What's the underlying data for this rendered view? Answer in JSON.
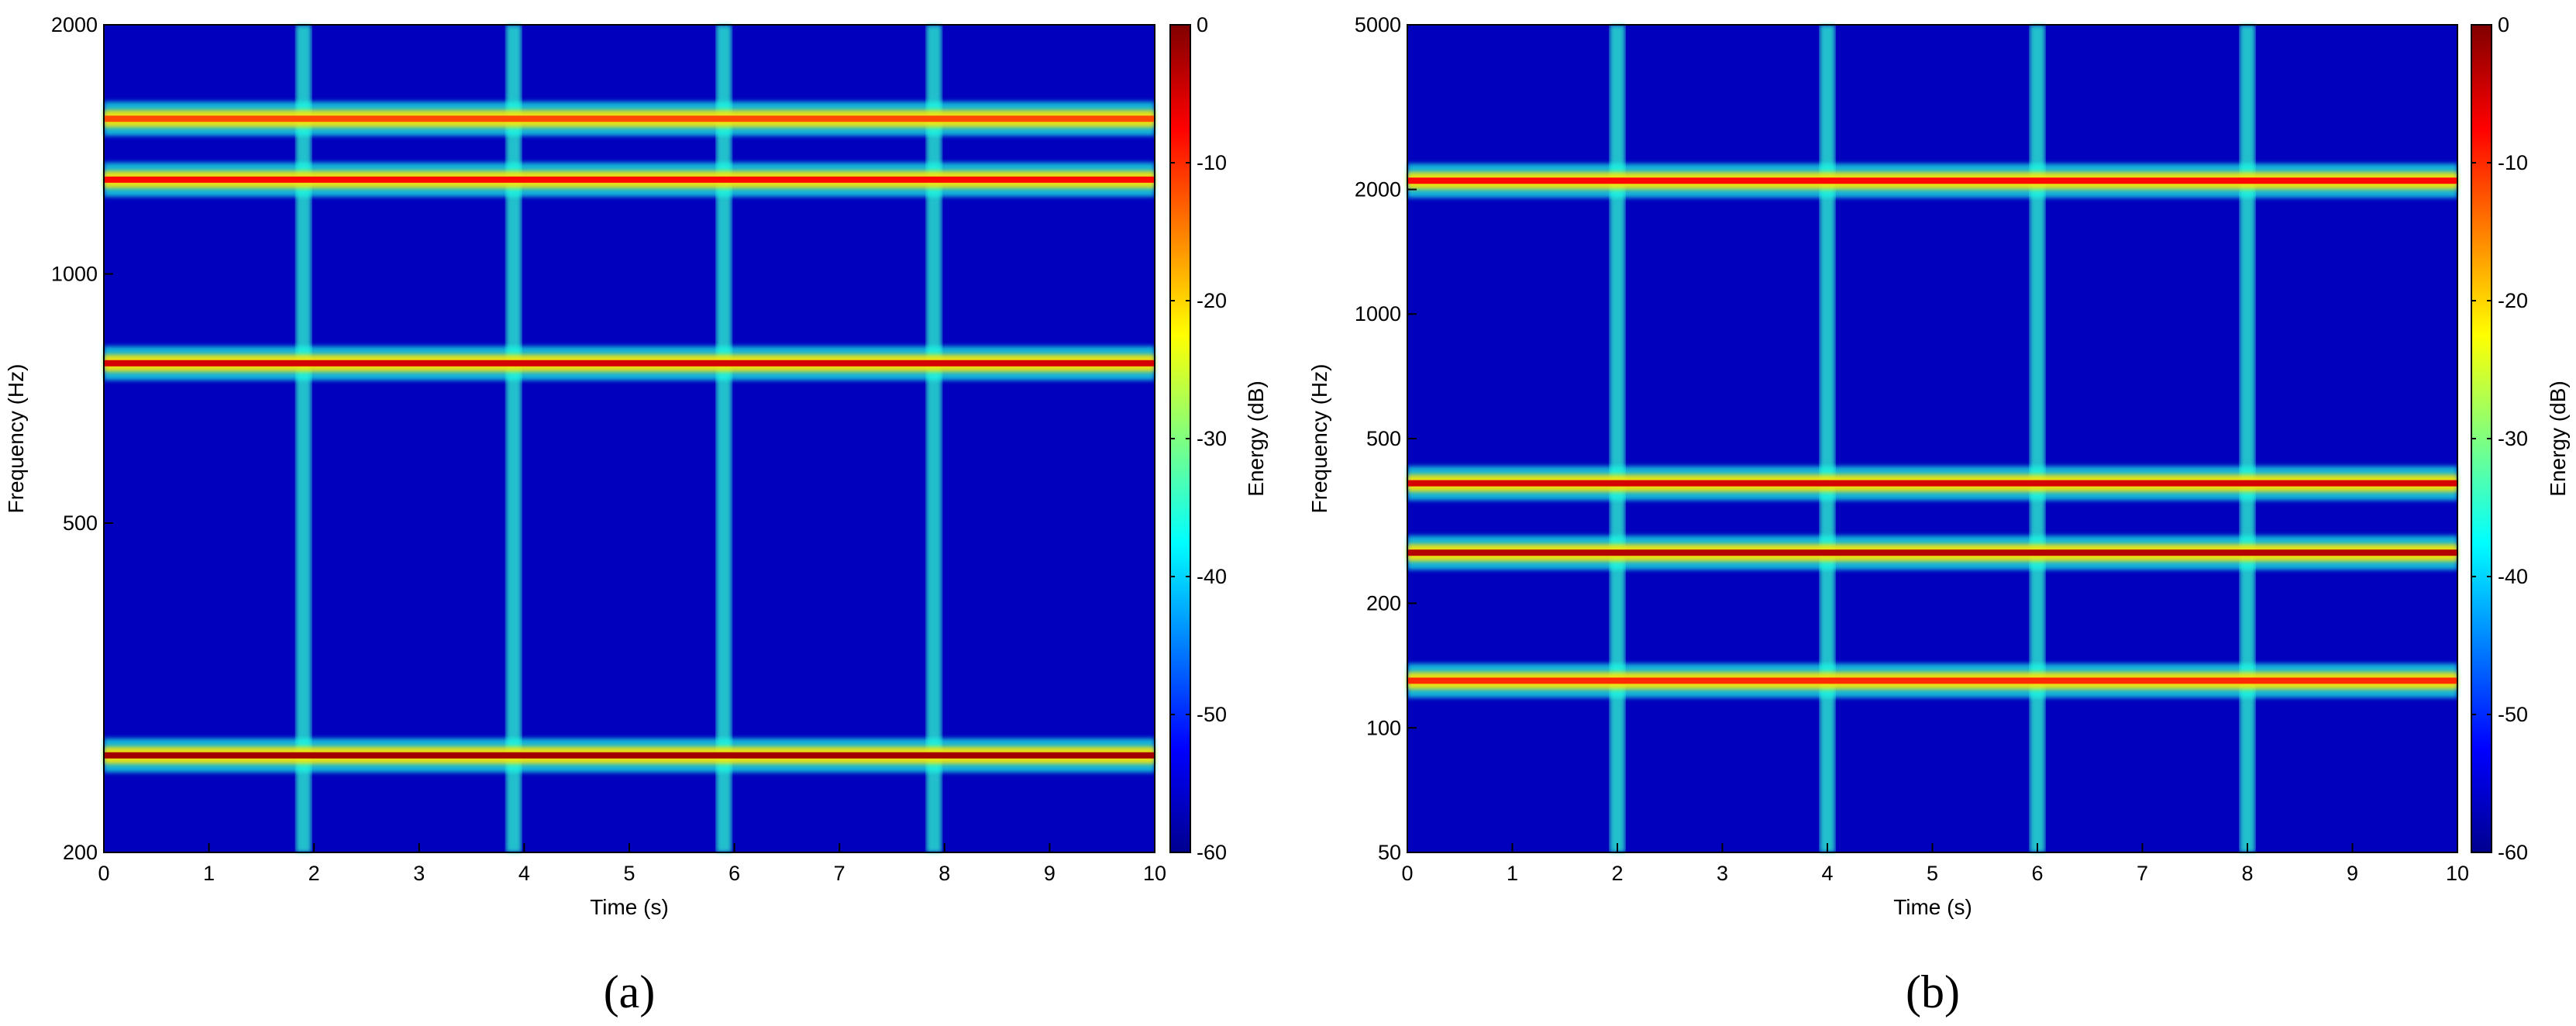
{
  "chart_data": [
    {
      "type": "heatmap",
      "panel": "a",
      "caption": "(a)",
      "xlabel": "Time (s)",
      "ylabel": "Frequency (Hz)",
      "colorbar_label": "Energy (dB)",
      "xlim": [
        0,
        10
      ],
      "ylim": [
        200,
        2000
      ],
      "yscale": "log",
      "clim": [
        -60,
        0
      ],
      "colormap": "jet",
      "x_ticks": [
        "0",
        "1",
        "2",
        "3",
        "4",
        "5",
        "6",
        "7",
        "8",
        "9",
        "10"
      ],
      "y_ticks": [
        {
          "value": 200,
          "label": "200"
        },
        {
          "value": 500,
          "label": "500"
        },
        {
          "value": 1000,
          "label": "1000"
        },
        {
          "value": 2000,
          "label": "2000"
        }
      ],
      "colorbar_ticks": [
        "0",
        "-10",
        "-20",
        "-30",
        "-40",
        "-50",
        "-60"
      ],
      "segment_boundaries": [
        1.9,
        3.9,
        5.9,
        7.9
      ],
      "bands": [
        {
          "freq": 1540,
          "energy": -12
        },
        {
          "freq": 1300,
          "energy": -8
        },
        {
          "freq": 780,
          "energy": -5
        },
        {
          "freq": 262,
          "energy": -2
        }
      ]
    },
    {
      "type": "heatmap",
      "panel": "b",
      "caption": "(b)",
      "xlabel": "Time (s)",
      "ylabel": "Frequency (Hz)",
      "colorbar_label": "Energy (dB)",
      "xlim": [
        0,
        10
      ],
      "ylim": [
        50,
        5000
      ],
      "yscale": "log",
      "clim": [
        -60,
        0
      ],
      "colormap": "jet",
      "x_ticks": [
        "0",
        "1",
        "2",
        "3",
        "4",
        "5",
        "6",
        "7",
        "8",
        "9",
        "10"
      ],
      "y_ticks": [
        {
          "value": 50,
          "label": "50"
        },
        {
          "value": 100,
          "label": "100"
        },
        {
          "value": 200,
          "label": "200"
        },
        {
          "value": 500,
          "label": "500"
        },
        {
          "value": 1000,
          "label": "1000"
        },
        {
          "value": 2000,
          "label": "2000"
        },
        {
          "value": 5000,
          "label": "5000"
        }
      ],
      "colorbar_ticks": [
        "0",
        "-10",
        "-20",
        "-30",
        "-40",
        "-50",
        "-60"
      ],
      "segment_boundaries": [
        2,
        4,
        6,
        8
      ],
      "bands": [
        {
          "freq": 2100,
          "energy": -8
        },
        {
          "freq": 390,
          "energy": -5
        },
        {
          "freq": 265,
          "energy": -3
        },
        {
          "freq": 130,
          "energy": -10
        }
      ]
    }
  ]
}
